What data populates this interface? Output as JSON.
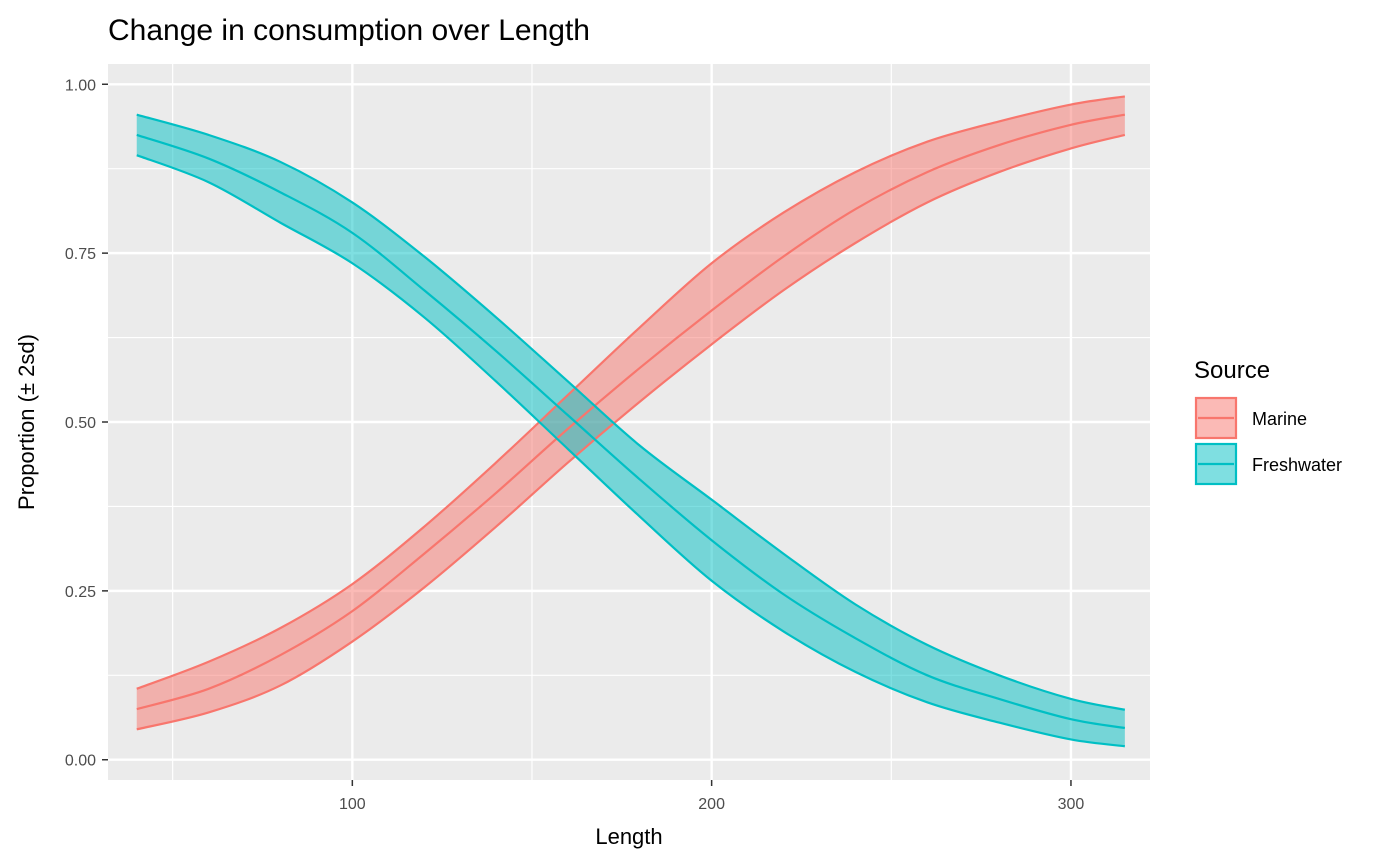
{
  "chart_data": {
    "type": "area",
    "title": "Change in consumption over Length",
    "xlabel": "Length",
    "ylabel": "Proportion (± 2sd)",
    "xlim": [
      32,
      322
    ],
    "ylim": [
      -0.03,
      1.03
    ],
    "x_ticks": [
      100,
      200,
      300
    ],
    "x_tick_labels": [
      "100",
      "200",
      "300"
    ],
    "x_minor_ticks": [
      50,
      150,
      250
    ],
    "y_ticks": [
      0,
      0.25,
      0.5,
      0.75,
      1.0
    ],
    "y_tick_labels": [
      "0.00",
      "0.25",
      "0.50",
      "0.75",
      "1.00"
    ],
    "y_minor_ticks": [
      0.125,
      0.375,
      0.625,
      0.875
    ],
    "grid": true,
    "legend": {
      "title": "Source",
      "position": "right"
    },
    "x": [
      40,
      60,
      80,
      100,
      120,
      140,
      160,
      180,
      200,
      220,
      240,
      260,
      280,
      300,
      315
    ],
    "series": [
      {
        "name": "Marine",
        "color": "#F8766D",
        "fill": "#F8766D",
        "mean": [
          0.075,
          0.105,
          0.155,
          0.22,
          0.305,
          0.395,
          0.49,
          0.58,
          0.665,
          0.745,
          0.815,
          0.87,
          0.91,
          0.94,
          0.955
        ],
        "upper": [
          0.105,
          0.145,
          0.195,
          0.26,
          0.345,
          0.44,
          0.54,
          0.64,
          0.735,
          0.81,
          0.87,
          0.915,
          0.945,
          0.97,
          0.982
        ],
        "lower": [
          0.045,
          0.07,
          0.11,
          0.175,
          0.255,
          0.345,
          0.44,
          0.53,
          0.615,
          0.695,
          0.765,
          0.825,
          0.87,
          0.905,
          0.925
        ]
      },
      {
        "name": "Freshwater",
        "color": "#00BFC4",
        "fill": "#00BFC4",
        "mean": [
          0.925,
          0.89,
          0.84,
          0.78,
          0.695,
          0.605,
          0.51,
          0.415,
          0.325,
          0.245,
          0.18,
          0.125,
          0.09,
          0.06,
          0.047
        ],
        "upper": [
          0.955,
          0.925,
          0.885,
          0.825,
          0.745,
          0.655,
          0.56,
          0.465,
          0.385,
          0.305,
          0.23,
          0.17,
          0.125,
          0.09,
          0.074
        ],
        "lower": [
          0.895,
          0.855,
          0.795,
          0.735,
          0.655,
          0.56,
          0.46,
          0.36,
          0.265,
          0.19,
          0.13,
          0.085,
          0.055,
          0.03,
          0.02
        ]
      }
    ]
  }
}
